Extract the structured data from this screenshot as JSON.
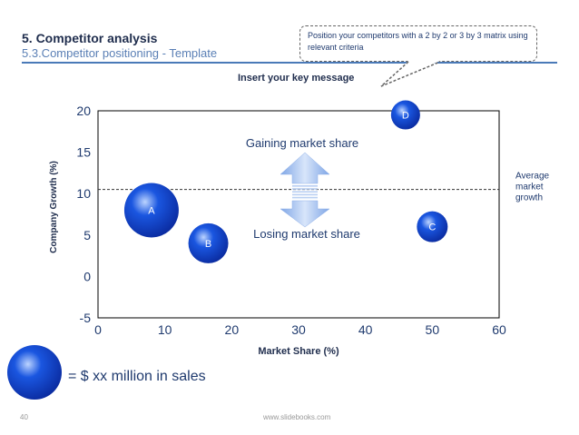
{
  "header": {
    "title": "5. Competitor analysis",
    "subtitle": "5.3.Competitor positioning - Template"
  },
  "callout": {
    "text": "Position your competitors with a 2 by 2 or 3 by 3 matrix using relevant criteria"
  },
  "key_message": "Insert your key message",
  "chart_data": {
    "type": "scatter",
    "title": "",
    "xlabel": "Market Share (%)",
    "ylabel": "Company Growth (%)",
    "xlim": [
      0,
      60
    ],
    "ylim": [
      -5,
      20
    ],
    "xticks": [
      0,
      10,
      20,
      30,
      40,
      50,
      60
    ],
    "yticks": [
      -5,
      0,
      5,
      10,
      15,
      20
    ],
    "grid": false,
    "points": [
      {
        "label": "A",
        "x": 8,
        "y": 8
      },
      {
        "label": "B",
        "x": 16.5,
        "y": 4
      },
      {
        "label": "C",
        "x": 50,
        "y": 6
      },
      {
        "label": "D",
        "x": 46,
        "y": 19.5
      }
    ],
    "reference_line": {
      "y": 10.5,
      "label": "Average market growth"
    },
    "annotations": {
      "upper": "Gaining market share",
      "lower": "Losing market share"
    },
    "legend": {
      "text": "= $ xx million in sales"
    }
  },
  "colors": {
    "bubble_dark": "#0a2a9e",
    "bubble_mid": "#1a56e0",
    "bubble_light": "#bcd4ff",
    "arrow": "#a9c4ef",
    "text_dark": "#1f2d4d"
  },
  "footer": {
    "page_number": "40",
    "website": "www.slidebooks.com"
  }
}
